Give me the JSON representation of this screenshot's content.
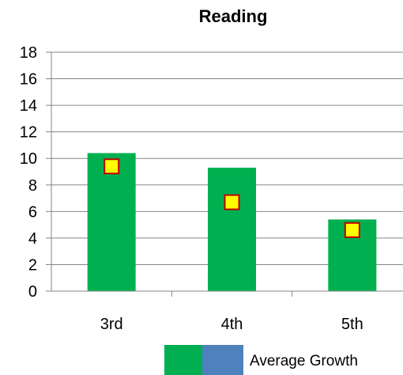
{
  "chart_data": {
    "type": "bar",
    "title": "Reading",
    "xlabel": "",
    "ylabel": "",
    "categories": [
      "3rd",
      "4th",
      "5th"
    ],
    "series": [
      {
        "name": "Average Growth",
        "type": "bar",
        "values": [
          10.4,
          9.3,
          5.4
        ]
      },
      {
        "type": "marker",
        "values": [
          9.4,
          6.7,
          4.6
        ]
      }
    ],
    "ylim": [
      0,
      18
    ],
    "yticks": [
      0,
      2,
      4,
      6,
      8,
      10,
      12,
      14,
      16,
      18
    ],
    "grid": true,
    "legend_position": "bottom-right"
  },
  "colors": {
    "bar": "#00b050",
    "legend_swatch_secondary": "#4f81bd",
    "marker_fill": "#ffff00",
    "marker_stroke": "#c00000",
    "grid": "#868686",
    "axis": "#868686"
  }
}
